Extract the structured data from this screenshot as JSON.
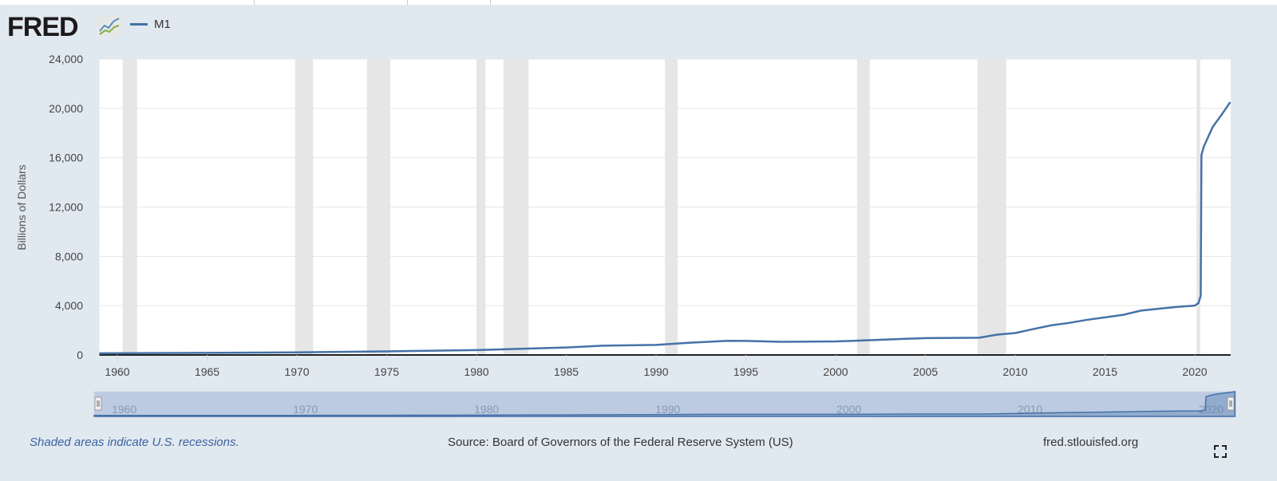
{
  "logo": "FRED",
  "legend": {
    "label": "M1",
    "color": "#4572a7"
  },
  "footer": {
    "note": "Shaded areas indicate U.S. recessions.",
    "source": "Source: Board of Governors of the Federal Reserve System (US)",
    "site": "fred.stlouisfed.org"
  },
  "icons": {
    "logo": "chart-line-icon",
    "fullscreen": "fullscreen-icon"
  },
  "chart_data": {
    "type": "line",
    "ylabel": "Billions of Dollars",
    "xlim": [
      1959,
      2022
    ],
    "ylim": [
      0,
      24000
    ],
    "yticks": [
      0,
      4000,
      8000,
      12000,
      16000,
      20000,
      24000
    ],
    "ytick_labels": [
      "0",
      "4,000",
      "8,000",
      "12,000",
      "16,000",
      "20,000",
      "24,000"
    ],
    "xticks": [
      1960,
      1965,
      1970,
      1975,
      1980,
      1985,
      1990,
      1995,
      2000,
      2005,
      2010,
      2015,
      2020
    ],
    "navigator_ticks": [
      1960,
      1970,
      1980,
      1990,
      2000,
      2010,
      2020
    ],
    "grid": true,
    "recessions": [
      [
        1960.3,
        1961.1
      ],
      [
        1969.9,
        1970.9
      ],
      [
        1973.9,
        1975.2
      ],
      [
        1980.0,
        1980.5
      ],
      [
        1981.5,
        1982.9
      ],
      [
        1990.5,
        1991.2
      ],
      [
        2001.2,
        2001.9
      ],
      [
        2007.9,
        2009.5
      ],
      [
        2020.1,
        2020.3
      ]
    ],
    "series": [
      {
        "name": "M1",
        "color": "#4572a7",
        "x": [
          1959,
          1965,
          1970,
          1975,
          1980,
          1985,
          1987,
          1990,
          1992,
          1994,
          1995,
          1997,
          2000,
          2001,
          2005,
          2008,
          2009,
          2010,
          2011,
          2012,
          2013,
          2014,
          2015,
          2016,
          2017,
          2018,
          2019,
          2020.0,
          2020.2,
          2020.33,
          2020.37,
          2020.5,
          2021,
          2021.5,
          2021.97
        ],
        "y": [
          140,
          170,
          210,
          290,
          400,
          610,
          750,
          820,
          1000,
          1150,
          1140,
          1070,
          1100,
          1150,
          1370,
          1400,
          1650,
          1780,
          2100,
          2400,
          2600,
          2850,
          3050,
          3250,
          3600,
          3750,
          3900,
          4000,
          4200,
          4800,
          16200,
          16900,
          18500,
          19500,
          20500
        ]
      }
    ]
  }
}
